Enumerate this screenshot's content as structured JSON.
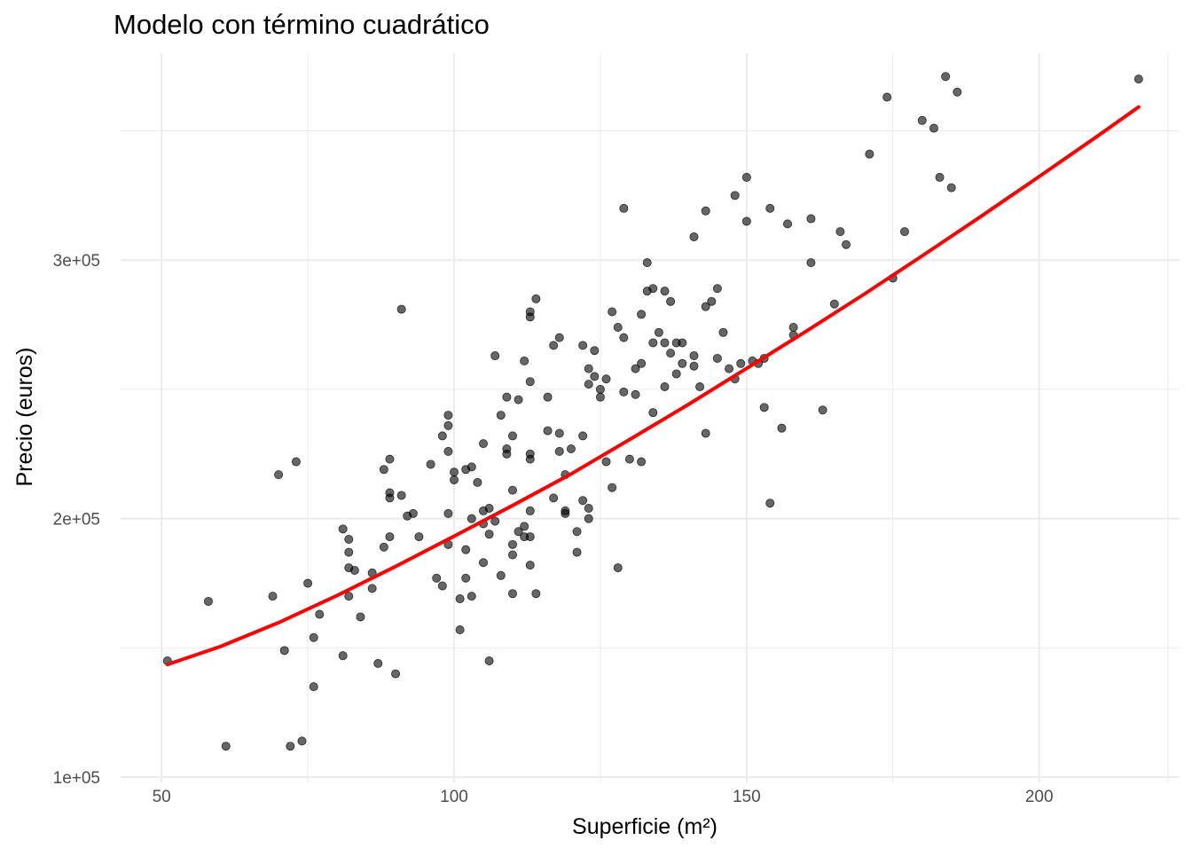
{
  "chart_data": {
    "type": "scatter",
    "title": "Modelo con término cuadrático",
    "xlabel": "Superficie (m²)",
    "ylabel": "Precio (euros)",
    "xlim": [
      43,
      224
    ],
    "ylim": [
      98000,
      380000
    ],
    "x_ticks": [
      50,
      100,
      150,
      200
    ],
    "x_tick_labels": [
      "50",
      "100",
      "150",
      "200"
    ],
    "x_minor_ticks": [
      75,
      125,
      175,
      222
    ],
    "y_ticks": [
      100000,
      200000,
      300000
    ],
    "y_tick_labels": [
      "1e+05",
      "2e+05",
      "3e+05"
    ],
    "y_minor_ticks": [
      150000,
      250000,
      350000
    ],
    "grid": true,
    "colors": {
      "points": "#000000",
      "fit_line": "#ff0000",
      "grid": "#ebebeb"
    },
    "series": [
      {
        "kind": "points",
        "x": [
          51,
          58,
          61,
          69,
          70,
          71,
          72,
          73,
          74,
          75,
          76,
          76,
          77,
          81,
          81,
          82,
          82,
          82,
          82,
          83,
          84,
          86,
          86,
          87,
          88,
          88,
          89,
          89,
          89,
          89,
          90,
          91,
          91,
          92,
          93,
          94,
          96,
          97,
          98,
          98,
          99,
          99,
          99,
          99,
          99,
          100,
          100,
          101,
          101,
          102,
          102,
          102,
          103,
          103,
          103,
          104,
          105,
          105,
          105,
          105,
          106,
          106,
          106,
          107,
          107,
          108,
          108,
          109,
          109,
          109,
          110,
          110,
          110,
          110,
          110,
          111,
          111,
          112,
          112,
          112,
          113,
          113,
          113,
          113,
          113,
          113,
          113,
          113,
          114,
          114,
          116,
          116,
          117,
          117,
          118,
          118,
          118,
          119,
          119,
          119,
          120,
          121,
          121,
          122,
          122,
          122,
          123,
          123,
          123,
          123,
          124,
          124,
          125,
          125,
          126,
          126,
          127,
          127,
          128,
          128,
          129,
          129,
          129,
          130,
          131,
          131,
          132,
          132,
          132,
          133,
          133,
          134,
          134,
          134,
          135,
          136,
          136,
          136,
          137,
          137,
          138,
          138,
          139,
          139,
          141,
          141,
          141,
          142,
          143,
          143,
          143,
          144,
          145,
          145,
          146,
          147,
          148,
          148,
          149,
          150,
          150,
          151,
          152,
          153,
          153,
          154,
          154,
          156,
          157,
          158,
          158,
          161,
          161,
          163,
          165,
          166,
          167,
          171,
          174,
          175,
          177,
          180,
          182,
          183,
          184,
          185,
          186,
          217
        ],
        "y": [
          145000,
          168000,
          112000,
          170000,
          217000,
          149000,
          112000,
          222000,
          114000,
          175000,
          154000,
          135000,
          163000,
          196000,
          147000,
          192000,
          187000,
          170000,
          181000,
          180000,
          162000,
          179000,
          173000,
          144000,
          219000,
          189000,
          223000,
          210000,
          208000,
          193000,
          140000,
          281000,
          209000,
          201000,
          202000,
          193000,
          221000,
          177000,
          174000,
          232000,
          226000,
          240000,
          236000,
          202000,
          190000,
          215000,
          218000,
          169000,
          157000,
          219000,
          188000,
          177000,
          220000,
          200000,
          170000,
          214000,
          198000,
          229000,
          203000,
          183000,
          204000,
          194000,
          145000,
          199000,
          263000,
          240000,
          178000,
          225000,
          247000,
          227000,
          232000,
          211000,
          186000,
          190000,
          171000,
          195000,
          246000,
          261000,
          193000,
          197000,
          280000,
          278000,
          253000,
          225000,
          223000,
          203000,
          193000,
          182000,
          171000,
          285000,
          247000,
          234000,
          267000,
          208000,
          270000,
          233000,
          226000,
          203000,
          202000,
          217000,
          227000,
          195000,
          187000,
          232000,
          267000,
          207000,
          258000,
          252000,
          204000,
          200000,
          265000,
          255000,
          250000,
          247000,
          222000,
          254000,
          212000,
          280000,
          181000,
          274000,
          270000,
          249000,
          320000,
          223000,
          258000,
          248000,
          222000,
          260000,
          279000,
          288000,
          299000,
          268000,
          289000,
          241000,
          272000,
          251000,
          288000,
          268000,
          264000,
          284000,
          268000,
          256000,
          260000,
          268000,
          309000,
          263000,
          259000,
          251000,
          282000,
          319000,
          233000,
          284000,
          262000,
          289000,
          272000,
          258000,
          325000,
          254000,
          260000,
          332000,
          315000,
          261000,
          260000,
          262000,
          243000,
          320000,
          206000,
          235000,
          314000,
          274000,
          271000,
          299000,
          316000,
          242000,
          283000,
          311000,
          306000,
          341000,
          363000,
          293000,
          311000,
          354000,
          351000,
          332000,
          371000,
          328000,
          365000,
          370000
        ]
      },
      {
        "kind": "fit_line",
        "x": [
          51,
          60,
          70,
          80,
          90,
          100,
          110,
          120,
          130,
          140,
          150,
          160,
          170,
          180,
          190,
          200,
          210,
          217
        ],
        "y": [
          143600,
          150500,
          159800,
          170300,
          181500,
          193200,
          205100,
          217300,
          230600,
          244100,
          258100,
          272200,
          286700,
          301600,
          316800,
          332300,
          348000,
          359200
        ]
      }
    ]
  }
}
